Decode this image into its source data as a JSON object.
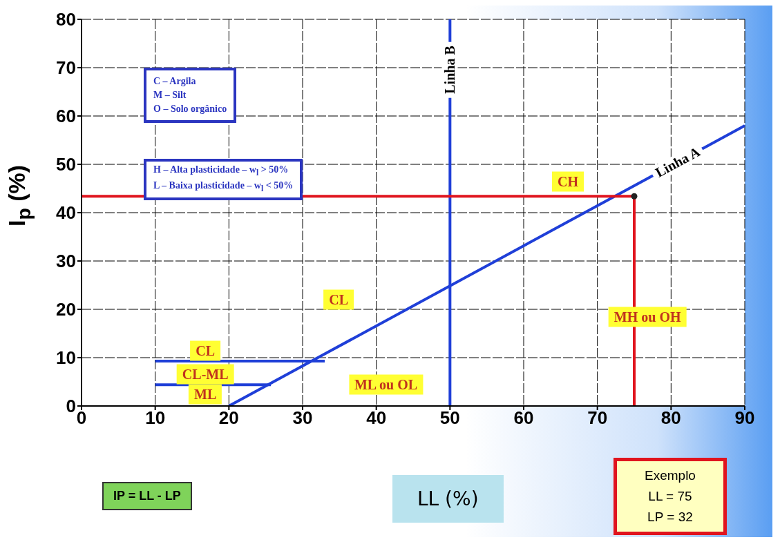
{
  "chart_data": {
    "type": "line",
    "xlabel": "LL (%)",
    "ylabel": "I$_{p}$ (%)",
    "xlim": [
      0,
      90
    ],
    "xticks": [
      0,
      10,
      20,
      30,
      40,
      50,
      60,
      70,
      80,
      90
    ],
    "ylim": [
      0,
      80
    ],
    "yticks": [
      0,
      10,
      20,
      30,
      40,
      50,
      60,
      70,
      80
    ],
    "grid": true,
    "line_style": "solid",
    "marker": "none",
    "series": [
      {
        "name": "Linha A",
        "color": "#1f3fd8",
        "x": [
          20,
          90
        ],
        "values": [
          0,
          58
        ]
      },
      {
        "name": "Linha B",
        "color": "#1f3fd8",
        "x": [
          50,
          50
        ],
        "values": [
          0,
          80
        ]
      },
      {
        "color": "#1f3fd8",
        "x": [
          10,
          33
        ],
        "values": [
          9.3,
          9.3
        ]
      },
      {
        "color": "#1f3fd8",
        "x": [
          10,
          25.7
        ],
        "values": [
          4.4,
          4.4
        ]
      },
      {
        "color": "#e0141e",
        "x": [
          0,
          75
        ],
        "values": [
          43.4,
          43.4
        ]
      },
      {
        "color": "#e0141e",
        "x": [
          75,
          75
        ],
        "values": [
          43.4,
          0
        ]
      },
      {
        "type": "scatter",
        "marker": "circle",
        "color": "#222222",
        "x": [
          75
        ],
        "values": [
          43.4
        ]
      }
    ],
    "annotations": [
      "C – Argila\nM – Silt\nO – Solo orgânico",
      "H – Alta plasticidade – w$_{l}$ > 50%\nL – Baixa plasticidade – w$_{l}$ < 50%",
      "IP = LL - LP",
      "Exemplo\nLL = 75\nLP = 32",
      "CH",
      "CL",
      "MH ou OH",
      "ML ou OL",
      "CL",
      "CL-ML",
      "ML"
    ]
  }
}
